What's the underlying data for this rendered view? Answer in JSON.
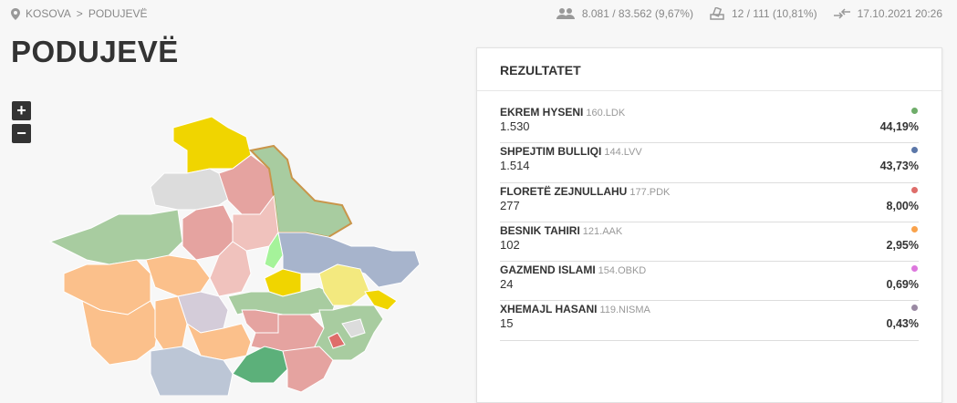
{
  "breadcrumb": {
    "items": [
      "KOSOVA",
      "PODUJEVË"
    ],
    "separator": ">",
    "icon": "map-pin-icon"
  },
  "stats": {
    "turnout": {
      "icon": "people-icon",
      "text": "8.081 / 83.562 (9,67%)"
    },
    "stations": {
      "icon": "ballot-box-icon",
      "text": "12 / 111 (10,81%)"
    },
    "updated": {
      "icon": "sync-arrows-icon",
      "text": "17.10.2021 20:26"
    }
  },
  "page_title": "PODUJEVË",
  "map_controls": {
    "zoom_in": "+",
    "zoom_out": "−"
  },
  "results": {
    "title": "REZULTATET",
    "candidates": [
      {
        "name": "EKREM HYSENI",
        "party": "160.LDK",
        "votes": "1.530",
        "percent": "44,19%",
        "color": "#6fad6a"
      },
      {
        "name": "SHPEJTIM BULLIQI",
        "party": "144.LVV",
        "votes": "1.514",
        "percent": "43,73%",
        "color": "#5b77a8"
      },
      {
        "name": "FLORETË ZEJNULLAHU",
        "party": "177.PDK",
        "votes": "277",
        "percent": "8,00%",
        "color": "#de6d6a"
      },
      {
        "name": "BESNIK TAHIRI",
        "party": "121.AAK",
        "votes": "102",
        "percent": "2,95%",
        "color": "#f9a24b"
      },
      {
        "name": "GAZMEND ISLAMI",
        "party": "154.OBKD",
        "votes": "24",
        "percent": "0,69%",
        "color": "#dd77dd"
      },
      {
        "name": "XHEMAJL HASANI",
        "party": "119.NISMA",
        "votes": "15",
        "percent": "0,43%",
        "color": "#9a8aa3"
      }
    ]
  }
}
